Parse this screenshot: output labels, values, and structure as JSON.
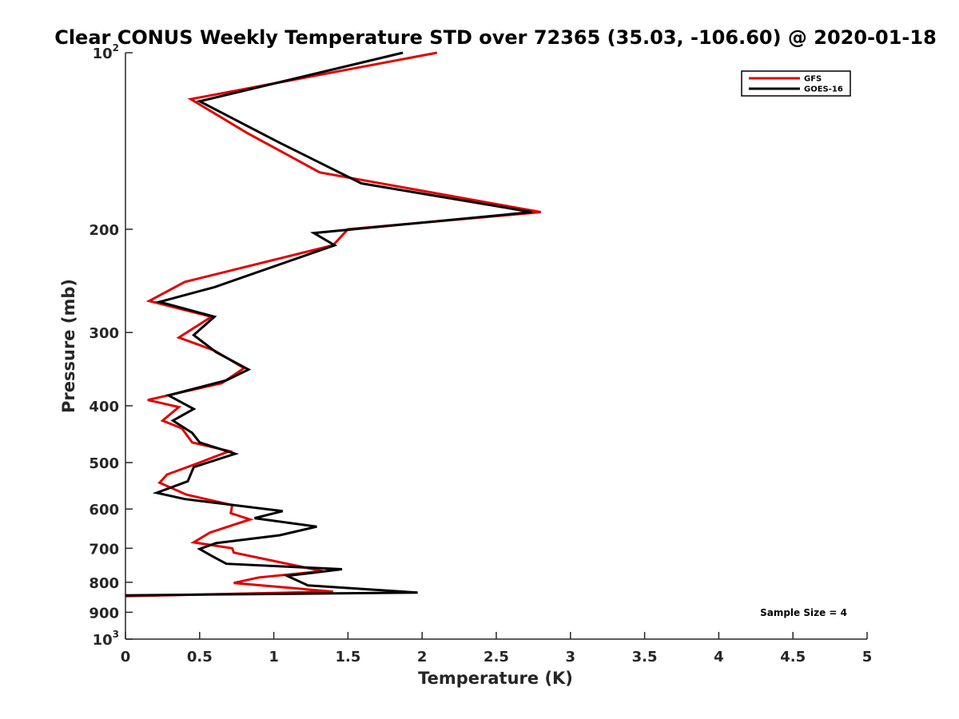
{
  "chart_data": {
    "type": "line",
    "title": "Clear CONUS Weekly Temperature STD over 72365 (35.03, -106.60) @ 2020-01-18",
    "xlabel": "Temperature (K)",
    "ylabel": "Pressure (mb)",
    "xlim": [
      0,
      5
    ],
    "ylim": [
      100,
      1000
    ],
    "y_scale": "log",
    "y_reversed": true,
    "x_ticks": [
      0,
      0.5,
      1,
      1.5,
      2,
      2.5,
      3,
      3.5,
      4,
      4.5,
      5
    ],
    "x_tick_labels": [
      "0",
      "0.5",
      "1",
      "1.5",
      "2",
      "2.5",
      "3",
      "3.5",
      "4",
      "4.5",
      "5"
    ],
    "y_ticks": [
      100,
      200,
      300,
      400,
      500,
      600,
      700,
      800,
      900,
      1000
    ],
    "y_tick_labels": [
      {
        "base": "10",
        "sup": "2"
      },
      {
        "base": "200",
        "sup": ""
      },
      {
        "base": "300",
        "sup": ""
      },
      {
        "base": "400",
        "sup": ""
      },
      {
        "base": "500",
        "sup": ""
      },
      {
        "base": "600",
        "sup": ""
      },
      {
        "base": "700",
        "sup": ""
      },
      {
        "base": "800",
        "sup": ""
      },
      {
        "base": "900",
        "sup": ""
      },
      {
        "base": "10",
        "sup": "3"
      }
    ],
    "grid": false,
    "legend_position": "top-right",
    "annotation": "Sample Size = 4",
    "series": [
      {
        "name": "GFS",
        "color": "#e00000",
        "points": [
          [
            2.1,
            100
          ],
          [
            0.44,
            120
          ],
          [
            0.82,
            137
          ],
          [
            1.31,
            160
          ],
          [
            2.8,
            187
          ],
          [
            1.5,
            200
          ],
          [
            1.4,
            213
          ],
          [
            0.4,
            246
          ],
          [
            0.16,
            265
          ],
          [
            0.58,
            282
          ],
          [
            0.36,
            306
          ],
          [
            0.6,
            322
          ],
          [
            0.8,
            345
          ],
          [
            0.65,
            366
          ],
          [
            0.15,
            391
          ],
          [
            0.36,
            402
          ],
          [
            0.25,
            424
          ],
          [
            0.38,
            437
          ],
          [
            0.45,
            462
          ],
          [
            0.7,
            478
          ],
          [
            0.5,
            500
          ],
          [
            0.28,
            524
          ],
          [
            0.23,
            541
          ],
          [
            0.41,
            567
          ],
          [
            0.72,
            591
          ],
          [
            0.71,
            610
          ],
          [
            0.84,
            625
          ],
          [
            0.57,
            658
          ],
          [
            0.46,
            684
          ],
          [
            0.72,
            700
          ],
          [
            0.73,
            712
          ],
          [
            1.33,
            766
          ],
          [
            0.9,
            785
          ],
          [
            0.73,
            802
          ],
          [
            1.4,
            830
          ],
          [
            0,
            845
          ]
        ]
      },
      {
        "name": "GOES-16",
        "color": "#000000",
        "points": [
          [
            1.87,
            100
          ],
          [
            0.5,
            121
          ],
          [
            1.03,
            142
          ],
          [
            1.59,
            167
          ],
          [
            2.74,
            187
          ],
          [
            1.27,
            203
          ],
          [
            1.41,
            213
          ],
          [
            0.6,
            251
          ],
          [
            0.23,
            266
          ],
          [
            0.6,
            282
          ],
          [
            0.46,
            303
          ],
          [
            0.61,
            324
          ],
          [
            0.83,
            347
          ],
          [
            0.68,
            362
          ],
          [
            0.29,
            384
          ],
          [
            0.46,
            405
          ],
          [
            0.32,
            424
          ],
          [
            0.45,
            445
          ],
          [
            0.5,
            462
          ],
          [
            0.74,
            483
          ],
          [
            0.46,
            509
          ],
          [
            0.42,
            538
          ],
          [
            0.21,
            563
          ],
          [
            0.4,
            577
          ],
          [
            1.06,
            605
          ],
          [
            0.87,
            622
          ],
          [
            1.29,
            643
          ],
          [
            1.04,
            665
          ],
          [
            0.61,
            686
          ],
          [
            0.5,
            702
          ],
          [
            0.58,
            721
          ],
          [
            0.68,
            744
          ],
          [
            1.46,
            760
          ],
          [
            1.09,
            780
          ],
          [
            1.23,
            810
          ],
          [
            1.97,
            833
          ],
          [
            0,
            842
          ]
        ]
      }
    ]
  }
}
